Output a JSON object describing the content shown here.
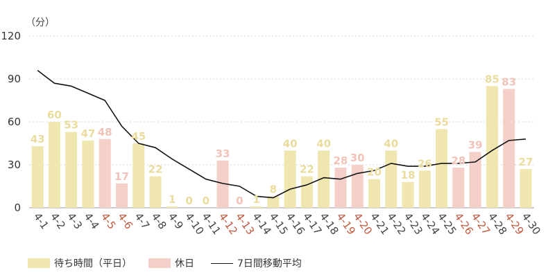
{
  "chart_data": {
    "type": "bar",
    "ylabel": "（分）",
    "ylim": [
      0,
      120
    ],
    "yticks": [
      "0",
      "30",
      "60",
      "90",
      "120"
    ],
    "grid": true,
    "categories": [
      "4-1",
      "4-2",
      "4-3",
      "4-4",
      "4-5",
      "4-6",
      "4-7",
      "4-8",
      "4-9",
      "4-10",
      "4-11",
      "4-12",
      "4-13",
      "4-14",
      "4-15",
      "4-16",
      "4-17",
      "4-18",
      "4-19",
      "4-20",
      "4-21",
      "4-22",
      "4-23",
      "4-24",
      "4-25",
      "4-26",
      "4-27",
      "4-28",
      "4-29",
      "4-30"
    ],
    "holiday_categories": [
      "4-5",
      "4-6",
      "4-12",
      "4-13",
      "4-19",
      "4-20",
      "4-26",
      "4-27",
      "4-29"
    ],
    "series": [
      {
        "name": "待ち時間（平日）",
        "type": "bar",
        "color": "#f0e6b0",
        "label_color": "#eadc9c",
        "values": [
          43,
          60,
          53,
          47,
          48,
          17,
          45,
          22,
          1,
          0,
          0,
          33,
          0,
          1,
          8,
          40,
          22,
          40,
          28,
          30,
          20,
          40,
          18,
          26,
          55,
          28,
          39,
          85,
          83,
          27
        ]
      },
      {
        "name": "休日",
        "type": "bar_color",
        "color": "#f4d0c8",
        "label_color": "#f1c3b8"
      },
      {
        "name": "7日間移動平均",
        "type": "line",
        "color": "#111111",
        "values": [
          96,
          87,
          85,
          80,
          75,
          57,
          45,
          42,
          34,
          27,
          20,
          17,
          15,
          8,
          7,
          13,
          16,
          21,
          20,
          24,
          26,
          31,
          29,
          29,
          31,
          31,
          32,
          40,
          47,
          48
        ]
      }
    ]
  },
  "legend": {
    "weekday": "待ち時間（平日）",
    "holiday": "休日",
    "average": "7日間移動平均"
  },
  "colors": {
    "xlabel_normal": "#444444",
    "xlabel_holiday": "#c0583e",
    "axis": "#999999",
    "grid": "#d6d6d6"
  }
}
